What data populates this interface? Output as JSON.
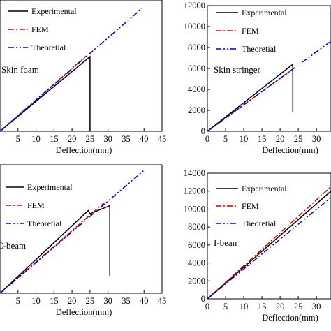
{
  "chart_data": [
    {
      "type": "line",
      "annotation": "Skin foam",
      "xlabel": "Deflection(mm)",
      "ylabel": "",
      "xlim": [
        0,
        45
      ],
      "ylim": [
        0,
        8000
      ],
      "xticks": [
        5,
        10,
        15,
        20,
        25,
        30,
        35,
        40,
        45
      ],
      "xtick_labels": [
        "5",
        "10",
        "15",
        "20",
        "25",
        "30",
        "35",
        "40",
        "45"
      ],
      "yticks": [],
      "ytick_labels": [],
      "legend": "top-left",
      "series": [
        {
          "name": "Experimental",
          "style": "solid",
          "color": "#000000",
          "x": [
            0,
            25,
            25
          ],
          "y": [
            0,
            4550,
            0
          ]
        },
        {
          "name": "FEM",
          "style": "dash-dot",
          "color": "#cc0000",
          "x": [
            0,
            24
          ],
          "y": [
            0,
            4600
          ]
        },
        {
          "name": "Theoretial",
          "style": "dash-dot-dot",
          "color": "#0000cc",
          "x": [
            0,
            40
          ],
          "y": [
            0,
            7600
          ]
        }
      ]
    },
    {
      "type": "line",
      "annotation": "Skin stringer",
      "xlabel": "Deflection(mm)",
      "ylabel": "",
      "xlim": [
        0,
        34
      ],
      "ylim": [
        0,
        12000
      ],
      "xticks": [
        0,
        5,
        10,
        15,
        20,
        25,
        30
      ],
      "xtick_labels": [
        "0",
        "5",
        "10",
        "15",
        "20",
        "25",
        "30"
      ],
      "yticks": [
        0,
        2000,
        4000,
        6000,
        8000,
        10000,
        12000
      ],
      "ytick_labels": [
        "0",
        "2000",
        "4000",
        "6000",
        "8000",
        "10000",
        "12000"
      ],
      "legend": "top-right",
      "series": [
        {
          "name": "Experimental",
          "style": "solid",
          "color": "#000000",
          "x": [
            0,
            23.5,
            23.5
          ],
          "y": [
            0,
            6400,
            1800
          ]
        },
        {
          "name": "FEM",
          "style": "dash-dot",
          "color": "#cc0000",
          "x": [
            0,
            23
          ],
          "y": [
            0,
            5800
          ]
        },
        {
          "name": "Theoretial",
          "style": "dash-dot-dot",
          "color": "#0000cc",
          "x": [
            0,
            34
          ],
          "y": [
            0,
            8600
          ]
        }
      ]
    },
    {
      "type": "line",
      "annotation": "C-beam",
      "xlabel": "Deflection(mm)",
      "ylabel": "",
      "xlim": [
        0,
        45
      ],
      "ylim": [
        0,
        8000
      ],
      "xticks": [
        5,
        10,
        15,
        20,
        25,
        30,
        35,
        40,
        45
      ],
      "xtick_labels": [
        "5",
        "10",
        "15",
        "20",
        "25",
        "30",
        "35",
        "40",
        "45"
      ],
      "yticks": [],
      "ytick_labels": [],
      "legend": "top-left",
      "series": [
        {
          "name": "Experimental",
          "style": "solid",
          "color": "#000000",
          "x": [
            0,
            24.5,
            25,
            30.5,
            30.5
          ],
          "y": [
            0,
            5150,
            4950,
            5450,
            1100
          ]
        },
        {
          "name": "FEM",
          "style": "dash-dot",
          "color": "#cc0000",
          "x": [
            0,
            29
          ],
          "y": [
            0,
            5650
          ]
        },
        {
          "name": "Theoretial",
          "style": "dash-dot-dot",
          "color": "#0000cc",
          "x": [
            0,
            40
          ],
          "y": [
            0,
            7650
          ]
        }
      ]
    },
    {
      "type": "line",
      "annotation": "I-bean",
      "xlabel": "Deflection(mm)",
      "ylabel": "",
      "xlim": [
        0,
        34
      ],
      "ylim": [
        0,
        14000
      ],
      "xticks": [
        0,
        5,
        10,
        15,
        20,
        25,
        30
      ],
      "xtick_labels": [
        "0",
        "5",
        "10",
        "15",
        "20",
        "25",
        "30"
      ],
      "yticks": [
        0,
        2000,
        4000,
        6000,
        8000,
        10000,
        12000,
        14000
      ],
      "ytick_labels": [
        "0",
        "2000",
        "4000",
        "6000",
        "8000",
        "10000",
        "12000",
        "14000"
      ],
      "legend": "top-right",
      "series": [
        {
          "name": "Experimental",
          "style": "solid",
          "color": "#000000",
          "x": [
            0,
            34
          ],
          "y": [
            0,
            12000
          ]
        },
        {
          "name": "FEM",
          "style": "dash-dot",
          "color": "#cc0000",
          "x": [
            0,
            34
          ],
          "y": [
            0,
            12500
          ]
        },
        {
          "name": "Theoretial",
          "style": "dash-dot-dot",
          "color": "#0000cc",
          "x": [
            0,
            34
          ],
          "y": [
            0,
            11300
          ]
        }
      ]
    }
  ]
}
